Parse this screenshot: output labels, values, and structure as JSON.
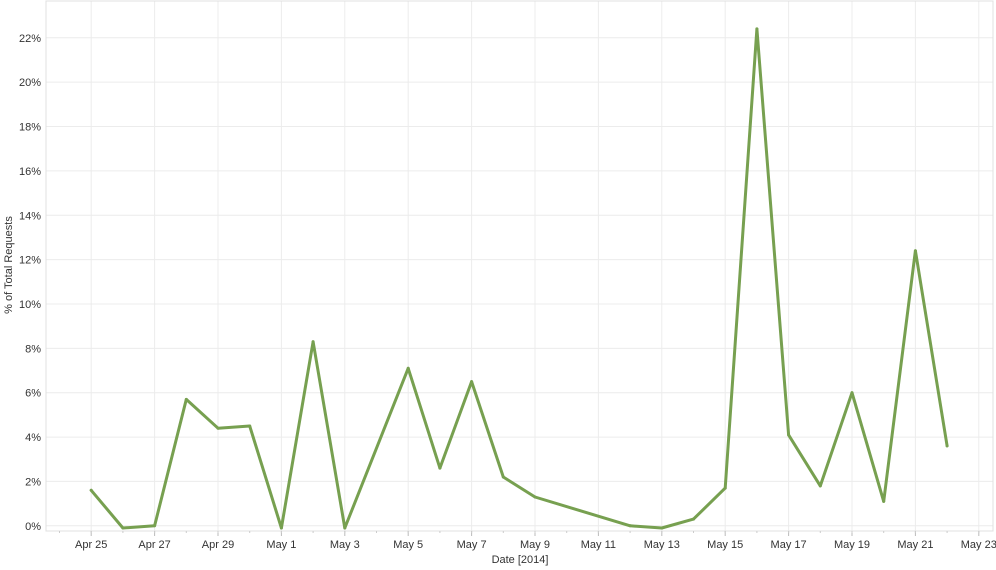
{
  "chart_data": {
    "type": "line",
    "title": "",
    "xlabel": "Date [2014]",
    "ylabel": "% of Total Requests",
    "grid": true,
    "line_color": "#77a050",
    "x_tick_labels": [
      "Apr 25",
      "Apr 27",
      "Apr 29",
      "May 1",
      "May 3",
      "May 5",
      "May 7",
      "May 9",
      "May 11",
      "May 13",
      "May 15",
      "May 17",
      "May 19",
      "May 21",
      "May 23"
    ],
    "y_tick_labels": [
      "0%",
      "2%",
      "4%",
      "6%",
      "8%",
      "10%",
      "12%",
      "14%",
      "16%",
      "18%",
      "20%",
      "22%"
    ],
    "ylim": [
      0,
      22
    ],
    "xlim": [
      "2014-04-24",
      "2014-05-23"
    ],
    "series": [
      {
        "x": [
          "2014-04-25",
          "2014-04-26",
          "2014-04-27",
          "2014-04-28",
          "2014-04-29",
          "2014-04-30",
          "2014-05-01",
          "2014-05-02",
          "2014-05-03",
          "2014-05-05",
          "2014-05-06",
          "2014-05-07",
          "2014-05-08",
          "2014-05-09",
          "2014-05-12",
          "2014-05-13",
          "2014-05-14",
          "2014-05-15",
          "2014-05-16",
          "2014-05-17",
          "2014-05-18",
          "2014-05-19",
          "2014-05-20",
          "2014-05-21",
          "2014-05-22"
        ],
        "values": [
          1.6,
          -0.1,
          0.0,
          5.7,
          4.4,
          4.5,
          -0.1,
          8.3,
          -0.1,
          7.1,
          2.6,
          6.5,
          2.2,
          1.3,
          0.0,
          -0.1,
          0.3,
          1.7,
          22.4,
          4.1,
          1.8,
          6.0,
          1.1,
          12.4,
          3.6
        ]
      }
    ]
  }
}
